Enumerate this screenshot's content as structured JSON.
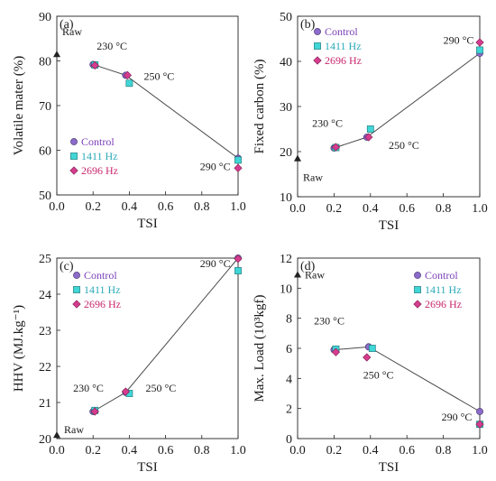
{
  "chart_data": [
    {
      "type": "scatter",
      "panel_label": "(a)",
      "xlabel": "TSI",
      "ylabel": "Volatile mater (%)",
      "xlim": [
        0,
        1
      ],
      "ylim": [
        50,
        90
      ],
      "xticks": [
        "0.0",
        "0.2",
        "0.4",
        "0.6",
        "0.8",
        "1.0"
      ],
      "yticks": [
        "50",
        "60",
        "70",
        "80",
        "90"
      ],
      "raw": {
        "label": "Raw",
        "x": 0,
        "y": 81.5
      },
      "trend": {
        "x": [
          0.2,
          0.38,
          1.0
        ],
        "y": [
          79.2,
          76.8,
          58.2
        ]
      },
      "series": [
        {
          "name": "Control",
          "x": [
            0.2,
            0.38,
            1.0
          ],
          "y": [
            79.2,
            76.8,
            58.2
          ]
        },
        {
          "name": "1411 Hz",
          "x": [
            0.21,
            0.4,
            1.0
          ],
          "y": [
            79.1,
            75.0,
            57.8
          ]
        },
        {
          "name": "2696 Hz",
          "x": [
            0.21,
            0.39,
            1.0
          ],
          "y": [
            79.0,
            76.8,
            56.0
          ]
        }
      ],
      "annotations": [
        {
          "text": "230 °C",
          "x": 0.22,
          "y": 82.5
        },
        {
          "text": "250 °C",
          "x": 0.48,
          "y": 75.8
        },
        {
          "text": "290 °C",
          "x": 0.79,
          "y": 55.6
        }
      ],
      "legend_position": "bottom-left"
    },
    {
      "type": "scatter",
      "panel_label": "(b)",
      "xlabel": "TSI",
      "ylabel": "Fixed carbon (%)",
      "xlim": [
        0,
        1
      ],
      "ylim": [
        10,
        50
      ],
      "xticks": [
        "0.0",
        "0.2",
        "0.4",
        "0.6",
        "0.8",
        "1.0"
      ],
      "yticks": [
        "10",
        "20",
        "30",
        "40",
        "50"
      ],
      "raw": {
        "label": "Raw",
        "x": 0,
        "y": 18.5
      },
      "trend": {
        "x": [
          0.2,
          0.38,
          1.0
        ],
        "y": [
          20.8,
          23.2,
          41.8
        ]
      },
      "series": [
        {
          "name": "Control",
          "x": [
            0.2,
            0.38,
            1.0
          ],
          "y": [
            20.8,
            23.2,
            41.8
          ]
        },
        {
          "name": "1411 Hz",
          "x": [
            0.21,
            0.4,
            1.0
          ],
          "y": [
            20.9,
            25.0,
            42.5
          ]
        },
        {
          "name": "2696 Hz",
          "x": [
            0.21,
            0.39,
            1.0
          ],
          "y": [
            21.0,
            23.2,
            44.2
          ]
        }
      ],
      "annotations": [
        {
          "text": "230 °C",
          "x": 0.08,
          "y": 25.5
        },
        {
          "text": "250 °C",
          "x": 0.5,
          "y": 20.6
        },
        {
          "text": "290 °C",
          "x": 0.8,
          "y": 43.9
        }
      ],
      "legend_position": "top-left"
    },
    {
      "type": "scatter",
      "panel_label": "(c)",
      "xlabel": "TSI",
      "ylabel": "HHV (MJ.kg⁻¹)",
      "xlim": [
        0,
        1
      ],
      "ylim": [
        20,
        25
      ],
      "xticks": [
        "0.0",
        "0.2",
        "0.4",
        "0.6",
        "0.8",
        "1.0"
      ],
      "yticks": [
        "20",
        "21",
        "22",
        "23",
        "24",
        "25"
      ],
      "raw": {
        "label": "Raw",
        "x": 0,
        "y": 20.1
      },
      "trend": {
        "x": [
          0.2,
          0.38,
          1.0
        ],
        "y": [
          20.75,
          21.28,
          25.0
        ]
      },
      "series": [
        {
          "name": "Control",
          "x": [
            0.2,
            0.38,
            1.0
          ],
          "y": [
            20.75,
            21.28,
            25.0
          ]
        },
        {
          "name": "1411 Hz",
          "x": [
            0.21,
            0.4,
            1.0
          ],
          "y": [
            20.78,
            21.25,
            24.65
          ]
        },
        {
          "name": "2696 Hz",
          "x": [
            0.21,
            0.38,
            1.0
          ],
          "y": [
            20.75,
            21.3,
            24.98
          ]
        }
      ],
      "annotations": [
        {
          "text": "230 °C",
          "x": 0.09,
          "y": 21.3
        },
        {
          "text": "250 °C",
          "x": 0.49,
          "y": 21.3
        },
        {
          "text": "290 °C",
          "x": 0.79,
          "y": 24.75
        }
      ],
      "legend_position": "top-left"
    },
    {
      "type": "scatter",
      "panel_label": "(d)",
      "xlabel": "TSI",
      "ylabel": "Max. Load (10³kgf)",
      "xlim": [
        0,
        1
      ],
      "ylim": [
        0,
        12
      ],
      "xticks": [
        "0.0",
        "0.2",
        "0.4",
        "0.6",
        "0.8",
        "1.0"
      ],
      "yticks": [
        "0",
        "2",
        "4",
        "6",
        "8",
        "10",
        "12"
      ],
      "raw": {
        "label": "Raw",
        "x": 0,
        "y": 10.9
      },
      "trend": {
        "x": [
          0.2,
          0.39,
          1.0
        ],
        "y": [
          5.9,
          6.1,
          1.8
        ]
      },
      "series": [
        {
          "name": "Control",
          "x": [
            0.2,
            0.39,
            1.0
          ],
          "y": [
            5.9,
            6.1,
            1.8
          ]
        },
        {
          "name": "1411 Hz",
          "x": [
            0.21,
            0.41,
            1.0
          ],
          "y": [
            5.95,
            6.0,
            0.95
          ]
        },
        {
          "name": "2696 Hz",
          "x": [
            0.21,
            0.38,
            1.0
          ],
          "y": [
            5.75,
            5.4,
            0.95
          ]
        }
      ],
      "annotations": [
        {
          "text": "230 °C",
          "x": 0.09,
          "y": 7.6
        },
        {
          "text": "250 °C",
          "x": 0.36,
          "y": 4.0
        },
        {
          "text": "290 °C",
          "x": 0.79,
          "y": 1.2
        }
      ],
      "legend_position": "top-right"
    }
  ],
  "colors": {
    "control": "#8B6BC9",
    "hz1411": "#40D6D6",
    "hz2696": "#D63C8E",
    "line": "#4A4A4A",
    "legend_control_text": "#7A3FB8",
    "legend_1411_text": "#2AA9B8",
    "legend_2696_text": "#C8276E"
  },
  "markers": {
    "control": "circle",
    "hz1411": "square",
    "hz2696": "diamond",
    "raw": "triangle-up"
  }
}
